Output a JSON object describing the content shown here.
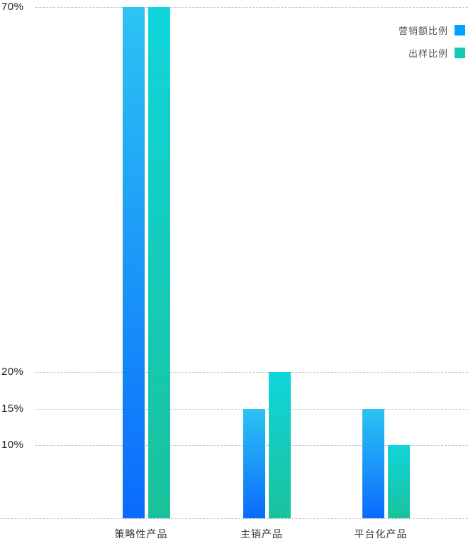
{
  "chart_data": {
    "type": "bar",
    "title": "",
    "xlabel": "",
    "ylabel": "",
    "categories": [
      "策略性产品",
      "主销产品",
      "平台化产品"
    ],
    "series": [
      {
        "name": "营销额比例",
        "values": [
          70,
          15,
          15
        ],
        "gradient_top": "#2cc4f3",
        "gradient_bottom": "#0a6bfd",
        "legend_color": "#00a2ff"
      },
      {
        "name": "出样比例",
        "values": [
          70,
          20,
          10
        ],
        "gradient_top": "#10d5dc",
        "gradient_bottom": "#1ac29b",
        "legend_color": "#12c9b9"
      }
    ],
    "y_ticks": [
      "70%",
      "20%",
      "15%",
      "10%"
    ],
    "y_tick_values": [
      70,
      20,
      15,
      10
    ],
    "ylim": [
      0,
      70
    ],
    "grid": "horizontal-dashed",
    "legend_position": "top-right"
  }
}
